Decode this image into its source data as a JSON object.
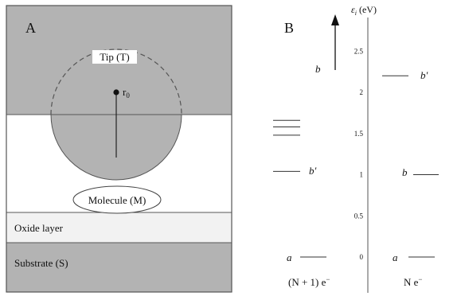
{
  "panel_a": {
    "label": "A",
    "tip_label": "Tip (T)",
    "r0_label": "r",
    "r0_subscript": "0",
    "molecule_label": "Molecule (M)",
    "oxide_label": "Oxide layer",
    "substrate_label": "Substrate (S)",
    "colors": {
      "tip_fill": "#b3b3b3",
      "oxide_fill": "#f2f2f2",
      "substrate_fill": "#b3b3b3",
      "vacuum_fill": "#ffffff",
      "border": "#555555"
    }
  },
  "panel_b": {
    "label": "B",
    "axis_label_main": "ε",
    "axis_label_sub": "i",
    "axis_label_unit": " (eV)",
    "ticks": [
      "2.5",
      "2",
      "1.5",
      "1",
      "0.5",
      "0"
    ],
    "left_column_label": "(N + 1) e",
    "left_column_sup": "−",
    "right_column_label": "N e",
    "right_column_sup": "−",
    "levels_left": [
      {
        "name": "a",
        "energy_ev": 0.0
      },
      {
        "name": "b′",
        "energy_ev": 1.04
      },
      {
        "name": "",
        "energy_ev": 1.48
      },
      {
        "name": "",
        "energy_ev": 1.58
      },
      {
        "name": "",
        "energy_ev": 1.66
      },
      {
        "name": "b",
        "energy_ev": 2.3
      }
    ],
    "levels_right": [
      {
        "name": "a",
        "energy_ev": 0.0
      },
      {
        "name": "b",
        "energy_ev": 1.0
      },
      {
        "name": "b′",
        "energy_ev": 2.2
      }
    ],
    "label_a": "a",
    "label_b": "b",
    "label_bprime": "b′"
  }
}
